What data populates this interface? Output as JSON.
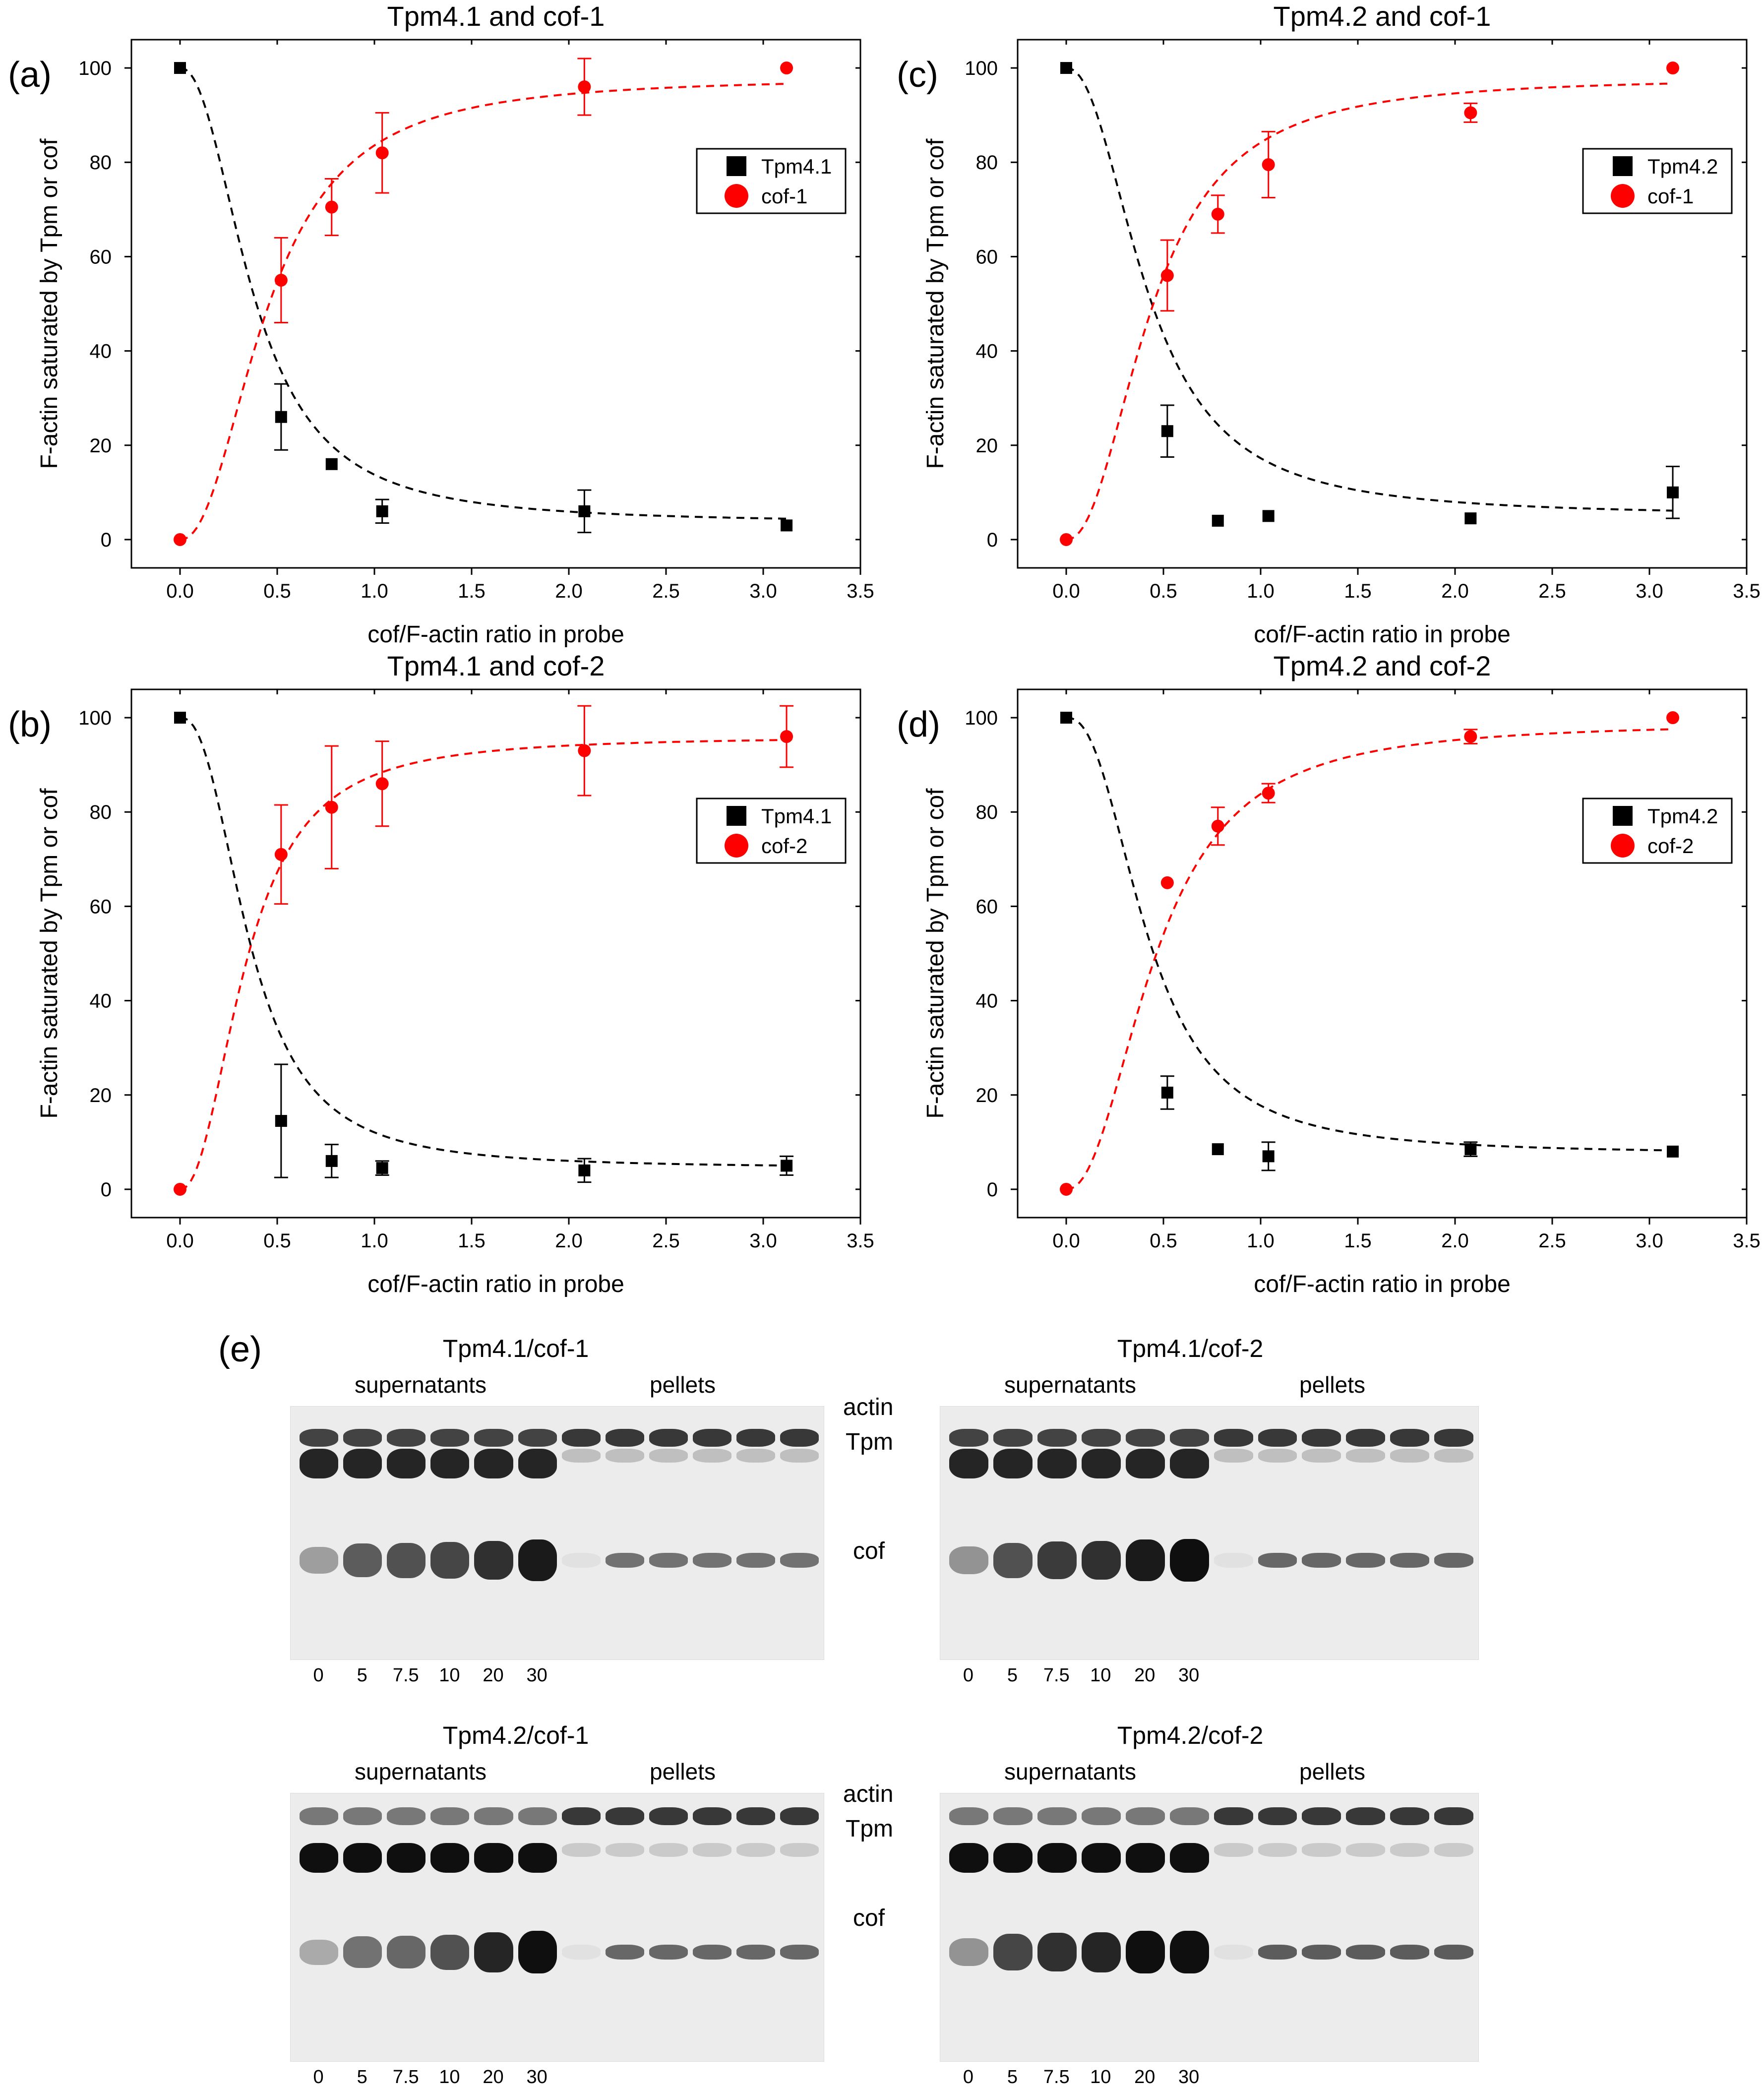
{
  "chart_data": [
    {
      "panel": "(a)",
      "type": "scatter",
      "title": "Tpm4.1 and cof-1",
      "xlabel": "cof/F-actin ratio in probe",
      "ylabel": "F-actin saturated by Tpm or cof",
      "xlim": [
        -0.25,
        3.5
      ],
      "ylim": [
        -6,
        106
      ],
      "xticks": [
        "0.0",
        "0.5",
        "1.0",
        "1.5",
        "2.0",
        "2.5",
        "3.0",
        "3.5"
      ],
      "yticks": [
        "0",
        "20",
        "40",
        "60",
        "80",
        "100"
      ],
      "series": [
        {
          "name": "Tpm4.1",
          "marker": "square",
          "color": "#000000",
          "x": [
            0,
            0.52,
            0.78,
            1.04,
            2.08,
            3.12
          ],
          "y": [
            100,
            26,
            16,
            6,
            6,
            3
          ],
          "err": [
            0,
            7,
            0,
            2.5,
            4.5,
            0
          ],
          "fit": {
            "plateau": 3.5,
            "K": 0.38,
            "n": 2.2
          }
        },
        {
          "name": "cof-1",
          "marker": "circle",
          "color": "#ff0000",
          "x": [
            0,
            0.52,
            0.78,
            1.04,
            2.08,
            3.12
          ],
          "y": [
            0,
            55,
            70.5,
            82,
            96,
            100
          ],
          "err": [
            0,
            9,
            6,
            8.5,
            6,
            0
          ],
          "fit": {
            "top": 98,
            "K": 0.45,
            "n": 2.2
          }
        }
      ]
    },
    {
      "panel": "(b)",
      "type": "scatter",
      "title": "Tpm4.1 and cof-2",
      "xlabel": "cof/F-actin ratio in probe",
      "ylabel": "F-actin saturated by Tpm or cof",
      "xlim": [
        -0.25,
        3.5
      ],
      "ylim": [
        -6,
        106
      ],
      "xticks": [
        "0.0",
        "0.5",
        "1.0",
        "1.5",
        "2.0",
        "2.5",
        "3.0",
        "3.5"
      ],
      "yticks": [
        "0",
        "20",
        "40",
        "60",
        "80",
        "100"
      ],
      "series": [
        {
          "name": "Tpm4.1",
          "marker": "square",
          "color": "#000000",
          "x": [
            0,
            0.52,
            0.78,
            1.04,
            2.08,
            3.12
          ],
          "y": [
            100,
            14.5,
            6,
            4.5,
            4,
            5
          ],
          "err": [
            0,
            12,
            3.5,
            1.5,
            2.5,
            2
          ],
          "fit": {
            "plateau": 4.5,
            "K": 0.36,
            "n": 2.4
          }
        },
        {
          "name": "cof-2",
          "marker": "circle",
          "color": "#ff0000",
          "x": [
            0,
            0.52,
            0.78,
            1.04,
            2.08,
            3.12
          ],
          "y": [
            0,
            71,
            81,
            86,
            93,
            96
          ],
          "err": [
            0,
            10.5,
            13,
            9,
            9.5,
            6.5
          ],
          "fit": {
            "top": 96,
            "K": 0.34,
            "n": 2.2
          }
        }
      ]
    },
    {
      "panel": "(c)",
      "type": "scatter",
      "title": "Tpm4.2 and cof-1",
      "xlabel": "cof/F-actin ratio in probe",
      "ylabel": "F-actin saturated by Tpm or cof",
      "xlim": [
        -0.25,
        3.5
      ],
      "ylim": [
        -6,
        106
      ],
      "xticks": [
        "0.0",
        "0.5",
        "1.0",
        "1.5",
        "2.0",
        "2.5",
        "3.0",
        "3.5"
      ],
      "yticks": [
        "0",
        "20",
        "40",
        "60",
        "80",
        "100"
      ],
      "series": [
        {
          "name": "Tpm4.2",
          "marker": "square",
          "color": "#000000",
          "x": [
            0,
            0.52,
            0.78,
            1.04,
            2.08,
            3.12
          ],
          "y": [
            100,
            23,
            4,
            5,
            4.5,
            10
          ],
          "err": [
            0,
            5.5,
            0,
            0,
            0,
            5.5
          ],
          "fit": {
            "plateau": 5,
            "K": 0.42,
            "n": 2.2
          }
        },
        {
          "name": "cof-1",
          "marker": "circle",
          "color": "#ff0000",
          "x": [
            0,
            0.52,
            0.78,
            1.04,
            2.08,
            3.12
          ],
          "y": [
            0,
            56,
            69,
            79.5,
            90.5,
            100
          ],
          "err": [
            0,
            7.5,
            4,
            7,
            2,
            0
          ],
          "fit": {
            "top": 98,
            "K": 0.44,
            "n": 2.2
          }
        }
      ]
    },
    {
      "panel": "(d)",
      "type": "scatter",
      "title": "Tpm4.2 and cof-2",
      "xlabel": "cof/F-actin ratio in probe",
      "ylabel": "F-actin saturated by Tpm or cof",
      "xlim": [
        -0.25,
        3.5
      ],
      "ylim": [
        -6,
        106
      ],
      "xticks": [
        "0.0",
        "0.5",
        "1.0",
        "1.5",
        "2.0",
        "2.5",
        "3.0",
        "3.5"
      ],
      "yticks": [
        "0",
        "20",
        "40",
        "60",
        "80",
        "100"
      ],
      "series": [
        {
          "name": "Tpm4.2",
          "marker": "square",
          "color": "#000000",
          "x": [
            0,
            0.52,
            0.78,
            1.04,
            2.08,
            3.12
          ],
          "y": [
            100,
            20.5,
            8.5,
            7,
            8.5,
            8
          ],
          "err": [
            0,
            3.5,
            0,
            3,
            1.5,
            0
          ],
          "fit": {
            "plateau": 7.5,
            "K": 0.42,
            "n": 2.4
          }
        },
        {
          "name": "cof-2",
          "marker": "circle",
          "color": "#ff0000",
          "x": [
            0,
            0.52,
            0.78,
            1.04,
            2.08,
            3.12
          ],
          "y": [
            0,
            65,
            77,
            84,
            96,
            100
          ],
          "err": [
            0,
            0,
            4,
            2,
            1.5,
            0
          ],
          "fit": {
            "top": 99,
            "K": 0.46,
            "n": 2.2
          }
        }
      ]
    }
  ],
  "gels": {
    "panel_letter": "(e)",
    "supernatants_label": "supernatants",
    "pellets_label": "pellets",
    "lane_labels": [
      "0",
      "5",
      "7.5",
      "10",
      "20",
      "30"
    ],
    "band_labels": {
      "actin": "actin",
      "tpm": "Tpm",
      "cof": "cof"
    },
    "panels": [
      {
        "title": "Tpm4.1/cof-1",
        "cof_intensity": [
          0.35,
          0.65,
          0.7,
          0.75,
          0.85,
          0.95
        ],
        "tpm_sup": 0.9,
        "tpm_pel": 0.2,
        "pel_cof": 0.55
      },
      {
        "title": "Tpm4.1/cof-2",
        "cof_intensity": [
          0.4,
          0.7,
          0.8,
          0.85,
          0.95,
          1.0
        ],
        "tpm_sup": 0.9,
        "tpm_pel": 0.2,
        "pel_cof": 0.6
      },
      {
        "title": "Tpm4.2/cof-1",
        "cof_intensity": [
          0.3,
          0.55,
          0.6,
          0.7,
          0.9,
          1.0
        ],
        "tpm_sup": 1.0,
        "tpm_pel": 0.15,
        "pel_cof": 0.6
      },
      {
        "title": "Tpm4.2/cof-2",
        "cof_intensity": [
          0.4,
          0.75,
          0.85,
          0.9,
          1.0,
          1.0
        ],
        "tpm_sup": 1.0,
        "tpm_pel": 0.15,
        "pel_cof": 0.65
      }
    ]
  }
}
